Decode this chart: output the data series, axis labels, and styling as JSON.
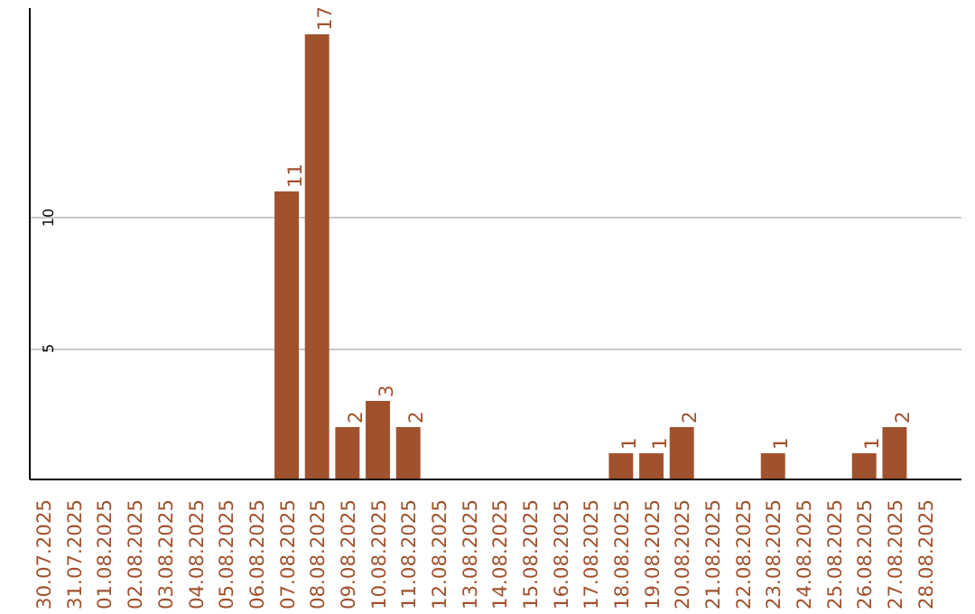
{
  "chart_data": {
    "type": "bar",
    "categories": [
      "30.07.2025",
      "31.07.2025",
      "01.08.2025",
      "02.08.2025",
      "03.08.2025",
      "04.08.2025",
      "05.08.2025",
      "06.08.2025",
      "07.08.2025",
      "08.08.2025",
      "09.08.2025",
      "10.08.2025",
      "11.08.2025",
      "12.08.2025",
      "13.08.2025",
      "14.08.2025",
      "15.08.2025",
      "16.08.2025",
      "17.08.2025",
      "18.08.2025",
      "19.08.2025",
      "20.08.2025",
      "21.08.2025",
      "22.08.2025",
      "23.08.2025",
      "24.08.2025",
      "25.08.2025",
      "26.08.2025",
      "27.08.2025",
      "28.08.2025"
    ],
    "values": [
      0,
      0,
      0,
      0,
      0,
      0,
      0,
      0,
      11,
      17,
      2,
      3,
      2,
      0,
      0,
      0,
      0,
      0,
      0,
      1,
      1,
      2,
      0,
      0,
      1,
      0,
      0,
      1,
      2,
      0
    ],
    "value_labels": [
      null,
      null,
      null,
      null,
      null,
      null,
      null,
      null,
      "11",
      "17",
      "2",
      "3",
      "2",
      null,
      null,
      null,
      null,
      null,
      null,
      "1",
      "1",
      "2",
      null,
      null,
      "1",
      null,
      null,
      "1",
      "2",
      null
    ],
    "color": "#a0522d",
    "ylim": [
      0,
      18
    ],
    "yticks": [
      5,
      10
    ],
    "grid": "y"
  }
}
